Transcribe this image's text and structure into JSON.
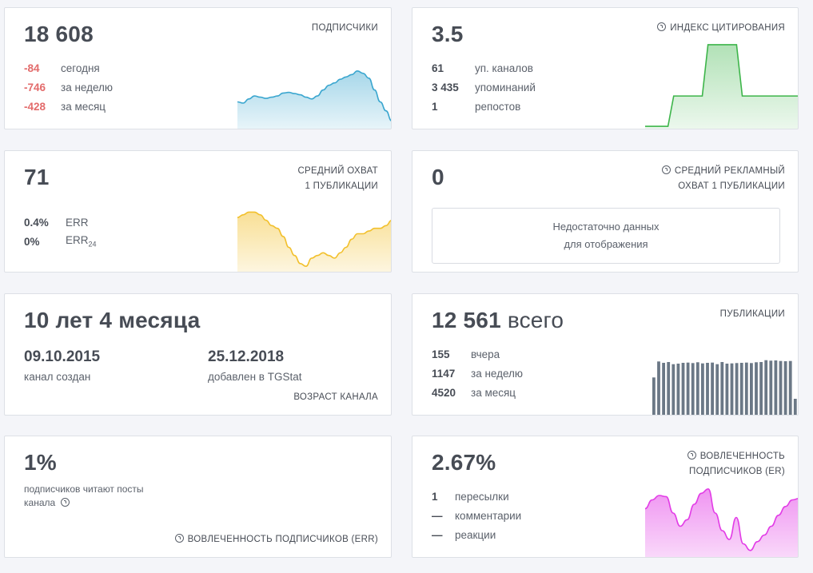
{
  "subscribers": {
    "value": "18 608",
    "label": "ПОДПИСЧИКИ",
    "rows": [
      {
        "value": "-84",
        "text": "сегодня"
      },
      {
        "value": "-746",
        "text": "за неделю"
      },
      {
        "value": "-428",
        "text": "за месяц"
      }
    ],
    "chart_color": "#3aa6cf"
  },
  "citation": {
    "value": "3.5",
    "label": "ИНДЕКС ЦИТИРОВАНИЯ",
    "rows": [
      {
        "value": "61",
        "text": "уп. каналов"
      },
      {
        "value": "3 435",
        "text": "упоминаний"
      },
      {
        "value": "1",
        "text": "репостов"
      }
    ],
    "chart_color": "#3db54a"
  },
  "reach": {
    "value": "71",
    "label_line1": "СРЕДНИЙ ОХВАТ",
    "label_line2": "1 ПУБЛИКАЦИИ",
    "rows": [
      {
        "value": "0.4%",
        "text": "ERR"
      },
      {
        "value": "0%",
        "text": "ERR",
        "sub": "24"
      }
    ],
    "chart_color": "#f2c02c"
  },
  "ad_reach": {
    "value": "0",
    "label_line1": "СРЕДНИЙ РЕКЛАМНЫЙ",
    "label_line2": "ОХВАТ 1 ПУБЛИКАЦИИ",
    "empty_line1": "Недостаточно данных",
    "empty_line2": "для отображения"
  },
  "age": {
    "value": "10 лет 4 месяца",
    "created_date": "09.10.2015",
    "created_label": "канал создан",
    "added_date": "25.12.2018",
    "added_label": "добавлен в TGStat",
    "label": "ВОЗРАСТ КАНАЛА"
  },
  "posts": {
    "value": "12 561",
    "value_suffix": "всего",
    "label": "ПУБЛИКАЦИИ",
    "rows": [
      {
        "value": "155",
        "text": "вчера"
      },
      {
        "value": "1147",
        "text": "за неделю"
      },
      {
        "value": "4520",
        "text": "за месяц"
      }
    ],
    "chart_color": "#6b7886"
  },
  "err": {
    "value": "1%",
    "desc_line1": "подписчиков читают посты",
    "desc_line2": "канала",
    "label": "ВОВЛЕЧЕННОСТЬ ПОДПИСЧИКОВ (ERR)"
  },
  "er": {
    "value": "2.67%",
    "label_line1": "ВОВЛЕЧЕННОСТЬ",
    "label_line2": "ПОДПИСЧИКОВ (ER)",
    "rows": [
      {
        "value": "1",
        "text": "пересылки"
      },
      {
        "value": "—",
        "text": "комментарии"
      },
      {
        "value": "—",
        "text": "реакции"
      }
    ],
    "chart_color": "#e23ce6"
  },
  "chart_data": [
    {
      "type": "area",
      "name": "subscribers",
      "values": [
        18640,
        18638,
        18645,
        18650,
        18648,
        18646,
        18648,
        18650,
        18655,
        18656,
        18654,
        18652,
        18648,
        18645,
        18650,
        18660,
        18668,
        18672,
        18678,
        18682,
        18686,
        18692,
        18688,
        18680,
        18660,
        18640,
        18625,
        18608
      ]
    },
    {
      "type": "area",
      "name": "citation",
      "values": [
        0,
        0,
        0,
        0,
        0,
        1.3,
        1.3,
        1.3,
        1.3,
        1.3,
        1.3,
        3.5,
        3.5,
        3.5,
        3.5,
        3.5,
        3.5,
        1.3,
        1.3,
        1.3,
        1.3,
        1.3,
        1.3,
        1.3,
        1.3,
        1.3,
        1.3,
        1.3
      ]
    },
    {
      "type": "area",
      "name": "reach",
      "values": [
        75,
        76,
        77,
        77,
        76,
        74,
        72,
        71,
        68,
        64,
        61,
        58,
        57,
        60,
        61,
        62,
        61,
        60,
        62,
        64,
        67,
        69,
        69,
        70,
        71,
        71,
        72,
        74
      ]
    },
    {
      "type": "bar",
      "name": "posts",
      "values": [
        140,
        200,
        195,
        198,
        190,
        192,
        195,
        196,
        194,
        197,
        193,
        195,
        196,
        190,
        198,
        192,
        193,
        194,
        195,
        196,
        194,
        197,
        198,
        205,
        203,
        204,
        202,
        201,
        202,
        60
      ]
    },
    {
      "type": "area",
      "name": "er",
      "values": [
        2.2,
        2.6,
        2.8,
        2.75,
        2.0,
        1.4,
        1.7,
        2.4,
        2.9,
        3.1,
        2.0,
        1.2,
        0.8,
        1.8,
        0.6,
        0.3,
        0.7,
        1.0,
        1.4,
        1.9,
        2.3,
        2.6,
        2.67
      ]
    }
  ]
}
